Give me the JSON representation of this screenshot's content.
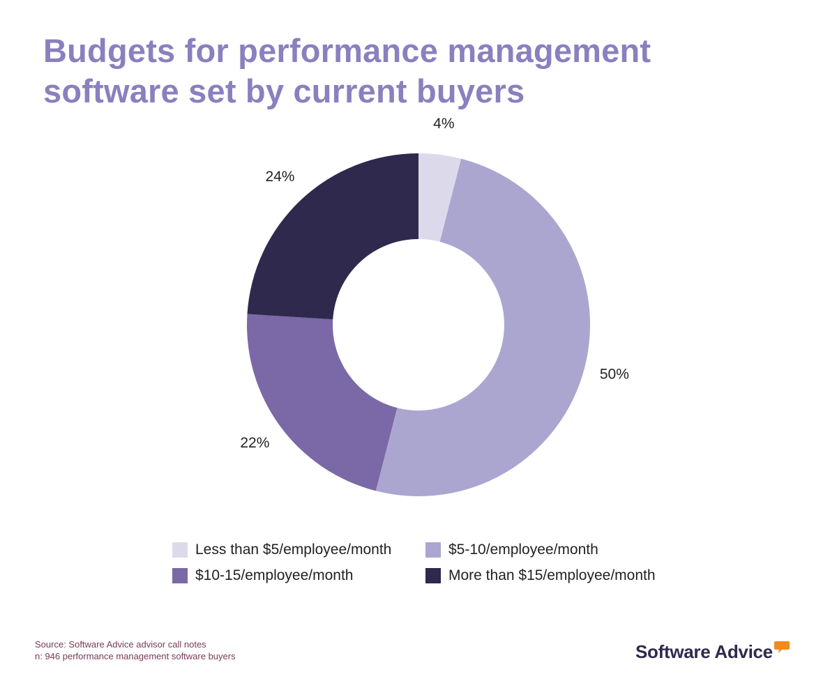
{
  "title": {
    "line1": "Budgets for performance management",
    "line2": "software set by current buyers"
  },
  "chart_data": {
    "type": "pie",
    "donut": true,
    "title": "Budgets for performance management software set by current buyers",
    "categories": [
      "Less than $5/employee/month",
      "$5-10/employee/month",
      "$10-15/employee/month",
      "More than $15/employee/month"
    ],
    "values": [
      4,
      50,
      22,
      24
    ],
    "labels": [
      "4%",
      "50%",
      "22%",
      "24%"
    ],
    "colors": [
      "#dcdaea",
      "#aba6d0",
      "#7b68a6",
      "#2e294d"
    ],
    "legend_position": "bottom"
  },
  "footer": {
    "source": "Source: Software Advice advisor call notes",
    "sample": "n: 946 performance management software buyers"
  },
  "logo": {
    "text": "Software Advice",
    "accent_color": "#f28a1e"
  }
}
